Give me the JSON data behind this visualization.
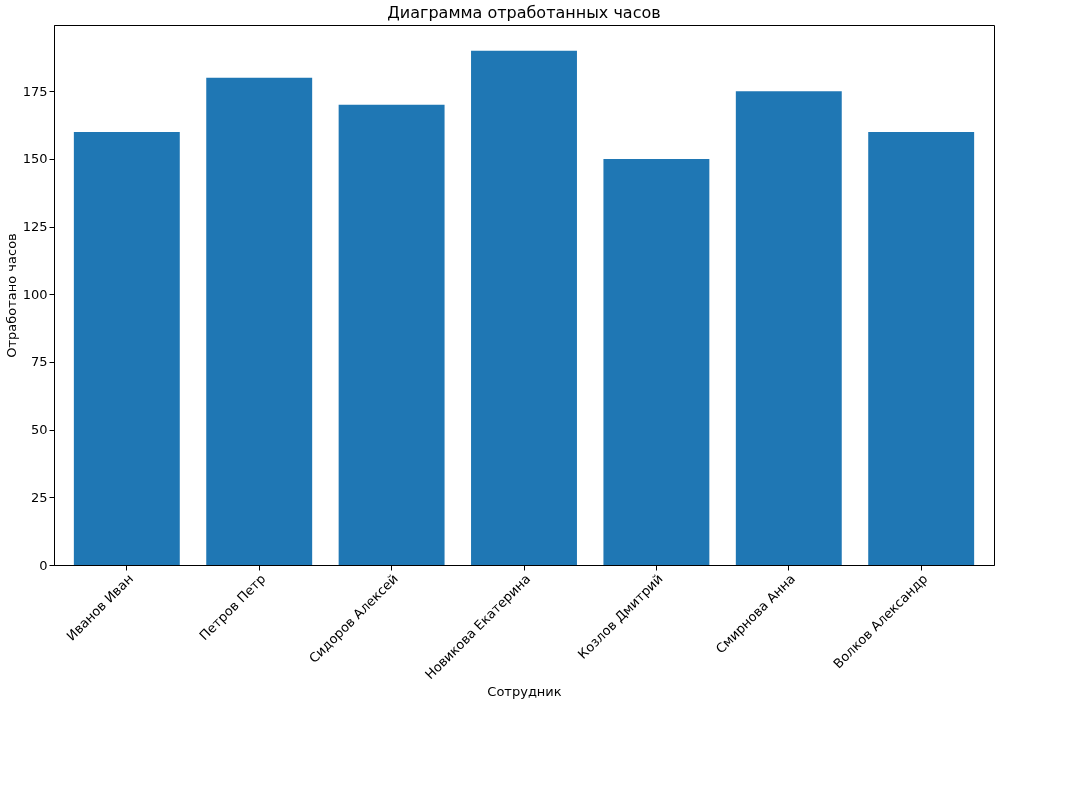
{
  "chart_data": {
    "type": "bar",
    "title": "Диаграмма отработанных часов",
    "xlabel": "Сотрудник",
    "ylabel": "Отработано часов",
    "categories": [
      "Иванов Иван",
      "Петров Петр",
      "Сидоров Алексей",
      "Новикова Екатерина",
      "Козлов Дмитрий",
      "Смирнова Анна",
      "Волков Александр"
    ],
    "values": [
      160,
      180,
      170,
      190,
      150,
      175,
      160
    ],
    "color": "#1f77b4",
    "ylim": [
      0,
      199.5
    ],
    "yticks": [
      0,
      25,
      50,
      75,
      100,
      125,
      150,
      175
    ],
    "grid": false
  }
}
